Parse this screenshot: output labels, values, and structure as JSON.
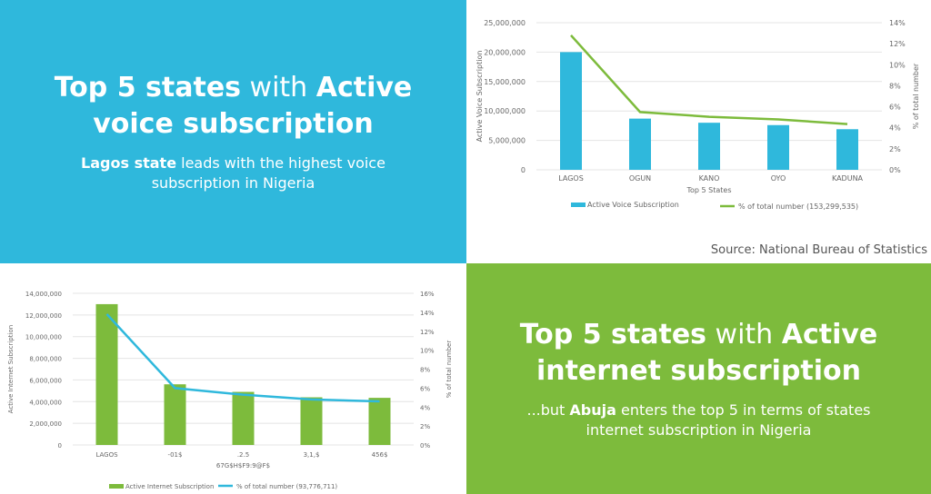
{
  "panel_voice": {
    "headline_bold1": "Top 5 states",
    "headline_mid": " with ",
    "headline_bold2": "Active",
    "headline_line2": "voice subscription",
    "sub_bold": "Lagos state",
    "sub_rest": " leads with the highest voice",
    "sub_line2": "subscription in Nigeria"
  },
  "panel_internet": {
    "headline_bold1": "Top 5 states",
    "headline_mid": " with ",
    "headline_bold2": "Active",
    "headline_line2": "internet subscription",
    "sub_pre": "...but ",
    "sub_bold": "Abuja",
    "sub_rest": " enters the top 5 in terms of states",
    "sub_line2": "internet subscription in Nigeria"
  },
  "source": "Source: National Bureau of Statistics",
  "chart_data": [
    {
      "type": "bar",
      "categories": [
        "LAGOS",
        "OGUN",
        "KANO",
        "OYO",
        "KADUNA"
      ],
      "series": [
        {
          "name": "Active Voice Subscription",
          "kind": "bar",
          "color": "#2fb8dc",
          "values": [
            20000000,
            8700000,
            8000000,
            7600000,
            6900000
          ]
        },
        {
          "name": "% of total number (153,299,535)",
          "kind": "line",
          "color": "#7dbb3c",
          "values": [
            12.8,
            5.5,
            5.05,
            4.8,
            4.35
          ]
        }
      ],
      "xlabel": "Top 5 States",
      "ylabel": "Active Voice Subscription",
      "y2label": "% of total number",
      "ylim": [
        0,
        25000000
      ],
      "yticks": [
        "0",
        "5,000,000",
        "10,000,000",
        "15,000,000",
        "20,000,000",
        "25,000,000"
      ],
      "y2lim": [
        0,
        14
      ],
      "y2ticks": [
        "0%",
        "2%",
        "4%",
        "6%",
        "8%",
        "10%",
        "12%",
        "14%"
      ],
      "legend": "bottom"
    },
    {
      "type": "bar",
      "categories": [
        "LAGOS",
        "-01$",
        ".2.5",
        "3,1,$",
        "456$"
      ],
      "series": [
        {
          "name": "Active Internet Subscription",
          "kind": "bar",
          "color": "#7dbb3c",
          "values": [
            13000000,
            5600000,
            4900000,
            4400000,
            4350000
          ]
        },
        {
          "name": "% of total number (93,776,711)",
          "kind": "line",
          "color": "#2fb8dc",
          "values": [
            13.8,
            6.0,
            5.3,
            4.8,
            4.6
          ]
        }
      ],
      "xlabel": "67G$H$F9:9@F$",
      "ylabel": "Active Internet Subscription",
      "y2label": "% of total number",
      "ylim": [
        0,
        14000000
      ],
      "yticks": [
        "0",
        "2,000,000",
        "4,000,000",
        "6,000,000",
        "8,000,000",
        "10,000,000",
        "12,000,000",
        "14,000,000"
      ],
      "y2lim": [
        0,
        16
      ],
      "y2ticks": [
        "0%",
        "2%",
        "4%",
        "6%",
        "8%",
        "10%",
        "12%",
        "14%",
        "16%"
      ],
      "legend": "bottom"
    }
  ]
}
